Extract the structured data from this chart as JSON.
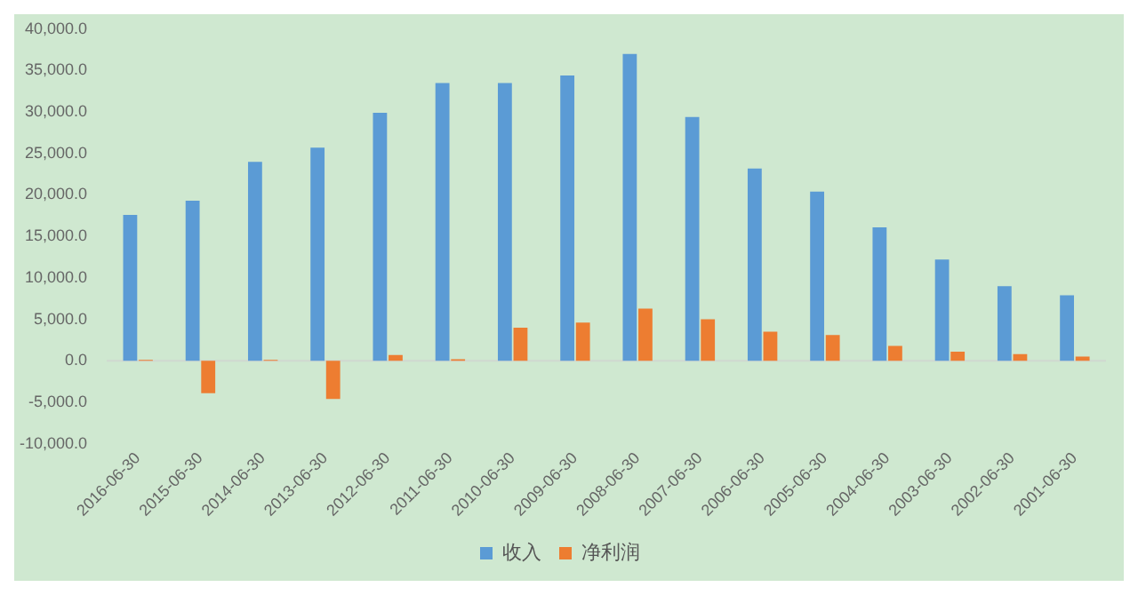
{
  "chart_data": {
    "type": "bar",
    "categories": [
      "2016-06-30",
      "2015-06-30",
      "2014-06-30",
      "2013-06-30",
      "2012-06-30",
      "2011-06-30",
      "2010-06-30",
      "2009-06-30",
      "2008-06-30",
      "2007-06-30",
      "2006-06-30",
      "2005-06-30",
      "2004-06-30",
      "2003-06-30",
      "2002-06-30",
      "2001-06-30"
    ],
    "series": [
      {
        "name": "收入",
        "color": "#5b9bd5",
        "values": [
          17600,
          19300,
          24000,
          25700,
          29900,
          33500,
          33500,
          34400,
          37000,
          29400,
          23200,
          20400,
          16100,
          12200,
          9000,
          7900
        ]
      },
      {
        "name": "净利润",
        "color": "#ed7d31",
        "values": [
          100,
          -3900,
          100,
          -4600,
          700,
          200,
          4000,
          4600,
          6300,
          5000,
          3500,
          3100,
          1800,
          1100,
          800,
          500
        ]
      }
    ],
    "ylim": [
      -10000,
      40000
    ],
    "yticks": [
      {
        "value": -10000,
        "label": "-10,000.0"
      },
      {
        "value": -5000,
        "label": "-5,000.0"
      },
      {
        "value": 0,
        "label": "0.0"
      },
      {
        "value": 5000,
        "label": "5,000.0"
      },
      {
        "value": 10000,
        "label": "10,000.0"
      },
      {
        "value": 15000,
        "label": "15,000.0"
      },
      {
        "value": 20000,
        "label": "20,000.0"
      },
      {
        "value": 25000,
        "label": "25,000.0"
      },
      {
        "value": 30000,
        "label": "30,000.0"
      },
      {
        "value": 35000,
        "label": "35,000.0"
      },
      {
        "value": 40000,
        "label": "40,000.0"
      }
    ],
    "ref_lines": [
      {
        "axis": "y",
        "value": 0,
        "color": "#d0d8d0"
      }
    ],
    "legend": "bottom"
  }
}
